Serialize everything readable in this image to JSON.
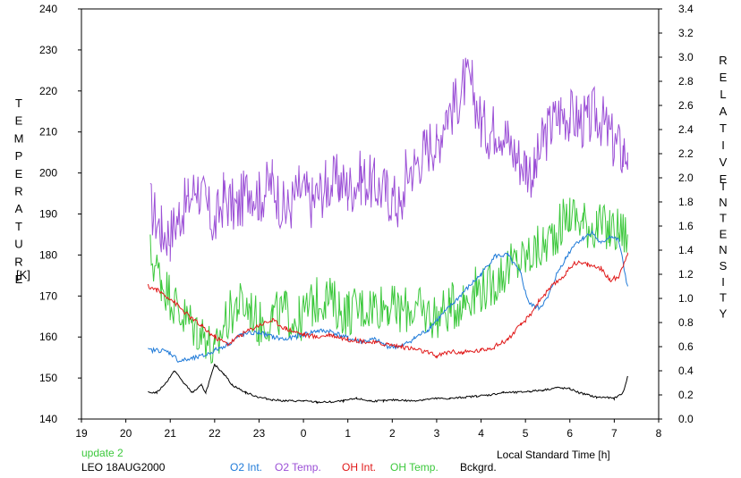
{
  "chart_data": {
    "type": "line",
    "xlabel": "Local Standard Time [h]",
    "ylabel_left": "TEMPERATURE",
    "ylabel_left_unit": "[K]",
    "ylabel_right_1": "RELATIVE",
    "ylabel_right_2": "INTENSITY",
    "x_ticks": [
      "19",
      "20",
      "21",
      "22",
      "23",
      "0",
      "1",
      "2",
      "3",
      "4",
      "5",
      "6",
      "7",
      "8"
    ],
    "xlim": [
      19,
      32
    ],
    "ylim_left": [
      140,
      240
    ],
    "y_ticks_left": [
      "140",
      "150",
      "160",
      "170",
      "180",
      "190",
      "200",
      "210",
      "220",
      "230",
      "240"
    ],
    "ylim_right": [
      0.0,
      3.4
    ],
    "y_ticks_right": [
      "0.0",
      "0.2",
      "0.4",
      "0.6",
      "0.8",
      "1.0",
      "1.2",
      "1.4",
      "1.6",
      "1.8",
      "2.0",
      "2.2",
      "2.4",
      "2.6",
      "2.8",
      "3.0",
      "3.2",
      "3.4"
    ],
    "footer": {
      "update": "update 2",
      "station": "LEO 18AUG2000"
    },
    "legend": [
      "O2 Int.",
      "O2 Temp.",
      "OH Int.",
      "OH Temp.",
      "Bckgrd."
    ],
    "series": [
      {
        "name": "O2 Temp.",
        "axis": "left",
        "color": "#9b4fd6",
        "noise": 7,
        "x": [
          20.55,
          20.8,
          21.0,
          21.2,
          21.4,
          21.6,
          21.8,
          22.0,
          22.2,
          22.5,
          22.8,
          23.0,
          23.3,
          23.6,
          23.9,
          24.2,
          24.5,
          24.8,
          25.0,
          25.3,
          25.6,
          25.9,
          26.1,
          26.2,
          26.3,
          26.5,
          26.7,
          26.9,
          27.0,
          27.2,
          27.4,
          27.6,
          27.8,
          28.0,
          28.2,
          28.4,
          28.6,
          28.8,
          29.0,
          29.2,
          29.4,
          29.6,
          29.8,
          30.0,
          30.2,
          30.4,
          30.6,
          30.8,
          31.0,
          31.2,
          31.3
        ],
        "y": [
          192,
          186,
          185,
          190,
          193,
          197,
          192,
          187,
          194,
          191,
          197,
          194,
          198,
          190,
          196,
          193,
          197,
          198,
          196,
          199,
          197,
          195,
          193,
          190,
          200,
          202,
          205,
          208,
          206,
          215,
          216,
          222,
          221,
          212,
          210,
          212,
          208,
          204,
          202,
          200,
          208,
          212,
          215,
          214,
          213,
          212,
          215,
          211,
          207,
          205,
          205
        ]
      },
      {
        "name": "OH Temp.",
        "axis": "left",
        "color": "#3cc83c",
        "noise": 6,
        "x": [
          20.55,
          20.8,
          21.0,
          21.2,
          21.4,
          21.6,
          21.8,
          22.0,
          22.2,
          22.5,
          22.8,
          23.0,
          23.3,
          23.6,
          23.9,
          24.2,
          24.5,
          24.8,
          25.0,
          25.3,
          25.6,
          25.9,
          26.1,
          26.4,
          26.7,
          27.0,
          27.3,
          27.6,
          27.9,
          28.2,
          28.5,
          28.8,
          29.1,
          29.4,
          29.7,
          30.0,
          30.3,
          30.6,
          30.9,
          31.1,
          31.3
        ],
        "y": [
          180,
          174,
          170,
          166,
          164,
          162,
          160,
          155,
          163,
          168,
          167,
          163,
          165,
          166,
          164,
          168,
          170,
          167,
          166,
          167,
          168,
          168,
          166,
          167,
          166,
          165,
          167,
          169,
          172,
          172,
          176,
          178,
          180,
          182,
          186,
          190,
          188,
          187,
          186,
          186,
          185
        ]
      },
      {
        "name": "O2 Int.",
        "axis": "right",
        "color": "#1f7ad8",
        "noise": 0.02,
        "x": [
          20.5,
          20.8,
          21.0,
          21.2,
          21.5,
          21.8,
          22.0,
          22.3,
          22.6,
          23.0,
          23.3,
          23.6,
          24.0,
          24.3,
          24.6,
          25.0,
          25.3,
          25.6,
          25.9,
          26.2,
          26.5,
          26.8,
          27.0,
          27.3,
          27.6,
          28.0,
          28.3,
          28.6,
          28.9,
          29.0,
          29.1,
          29.3,
          29.5,
          29.7,
          29.9,
          30.1,
          30.3,
          30.5,
          30.7,
          30.9,
          31.1,
          31.3
        ],
        "y": [
          0.57,
          0.57,
          0.55,
          0.48,
          0.5,
          0.53,
          0.57,
          0.62,
          0.7,
          0.72,
          0.68,
          0.66,
          0.7,
          0.73,
          0.73,
          0.67,
          0.64,
          0.66,
          0.6,
          0.6,
          0.67,
          0.74,
          0.82,
          0.93,
          1.05,
          1.2,
          1.35,
          1.36,
          1.2,
          1.05,
          0.95,
          0.92,
          1.0,
          1.2,
          1.33,
          1.45,
          1.5,
          1.55,
          1.45,
          1.52,
          1.48,
          1.1
        ]
      },
      {
        "name": "OH Int.",
        "axis": "right",
        "color": "#e01818",
        "noise": 0.02,
        "x": [
          20.5,
          20.7,
          21.0,
          21.2,
          21.4,
          21.7,
          22.0,
          22.3,
          22.6,
          23.0,
          23.3,
          23.6,
          24.0,
          24.3,
          24.6,
          25.0,
          25.3,
          25.6,
          25.9,
          26.2,
          26.5,
          26.8,
          27.0,
          27.3,
          27.6,
          28.0,
          28.3,
          28.6,
          28.9,
          29.1,
          29.3,
          29.6,
          29.9,
          30.1,
          30.4,
          30.7,
          30.9,
          31.1,
          31.3
        ],
        "y": [
          1.1,
          1.07,
          1.0,
          0.93,
          0.86,
          0.77,
          0.68,
          0.62,
          0.7,
          0.78,
          0.82,
          0.75,
          0.7,
          0.68,
          0.7,
          0.66,
          0.65,
          0.63,
          0.62,
          0.6,
          0.58,
          0.55,
          0.52,
          0.56,
          0.55,
          0.57,
          0.6,
          0.66,
          0.78,
          0.86,
          0.98,
          1.1,
          1.2,
          1.3,
          1.28,
          1.25,
          1.15,
          1.18,
          1.38
        ]
      },
      {
        "name": "Bckgrd.",
        "axis": "right",
        "color": "#000000",
        "noise": 0.008,
        "x": [
          20.5,
          20.7,
          20.9,
          21.1,
          21.3,
          21.5,
          21.7,
          21.8,
          22.0,
          22.2,
          22.4,
          22.7,
          23.0,
          23.3,
          23.6,
          24.0,
          24.3,
          24.6,
          24.9,
          25.2,
          25.5,
          25.8,
          26.1,
          26.4,
          26.7,
          27.0,
          27.3,
          27.6,
          27.9,
          28.2,
          28.5,
          28.8,
          29.1,
          29.4,
          29.7,
          30.0,
          30.2,
          30.4,
          30.6,
          30.8,
          31.0,
          31.2,
          31.3
        ],
        "y": [
          0.22,
          0.22,
          0.3,
          0.4,
          0.3,
          0.22,
          0.28,
          0.22,
          0.45,
          0.38,
          0.28,
          0.22,
          0.18,
          0.16,
          0.15,
          0.15,
          0.14,
          0.14,
          0.15,
          0.17,
          0.15,
          0.15,
          0.16,
          0.15,
          0.16,
          0.17,
          0.17,
          0.18,
          0.19,
          0.2,
          0.22,
          0.22,
          0.23,
          0.24,
          0.26,
          0.25,
          0.22,
          0.2,
          0.18,
          0.18,
          0.17,
          0.22,
          0.35
        ]
      }
    ]
  }
}
